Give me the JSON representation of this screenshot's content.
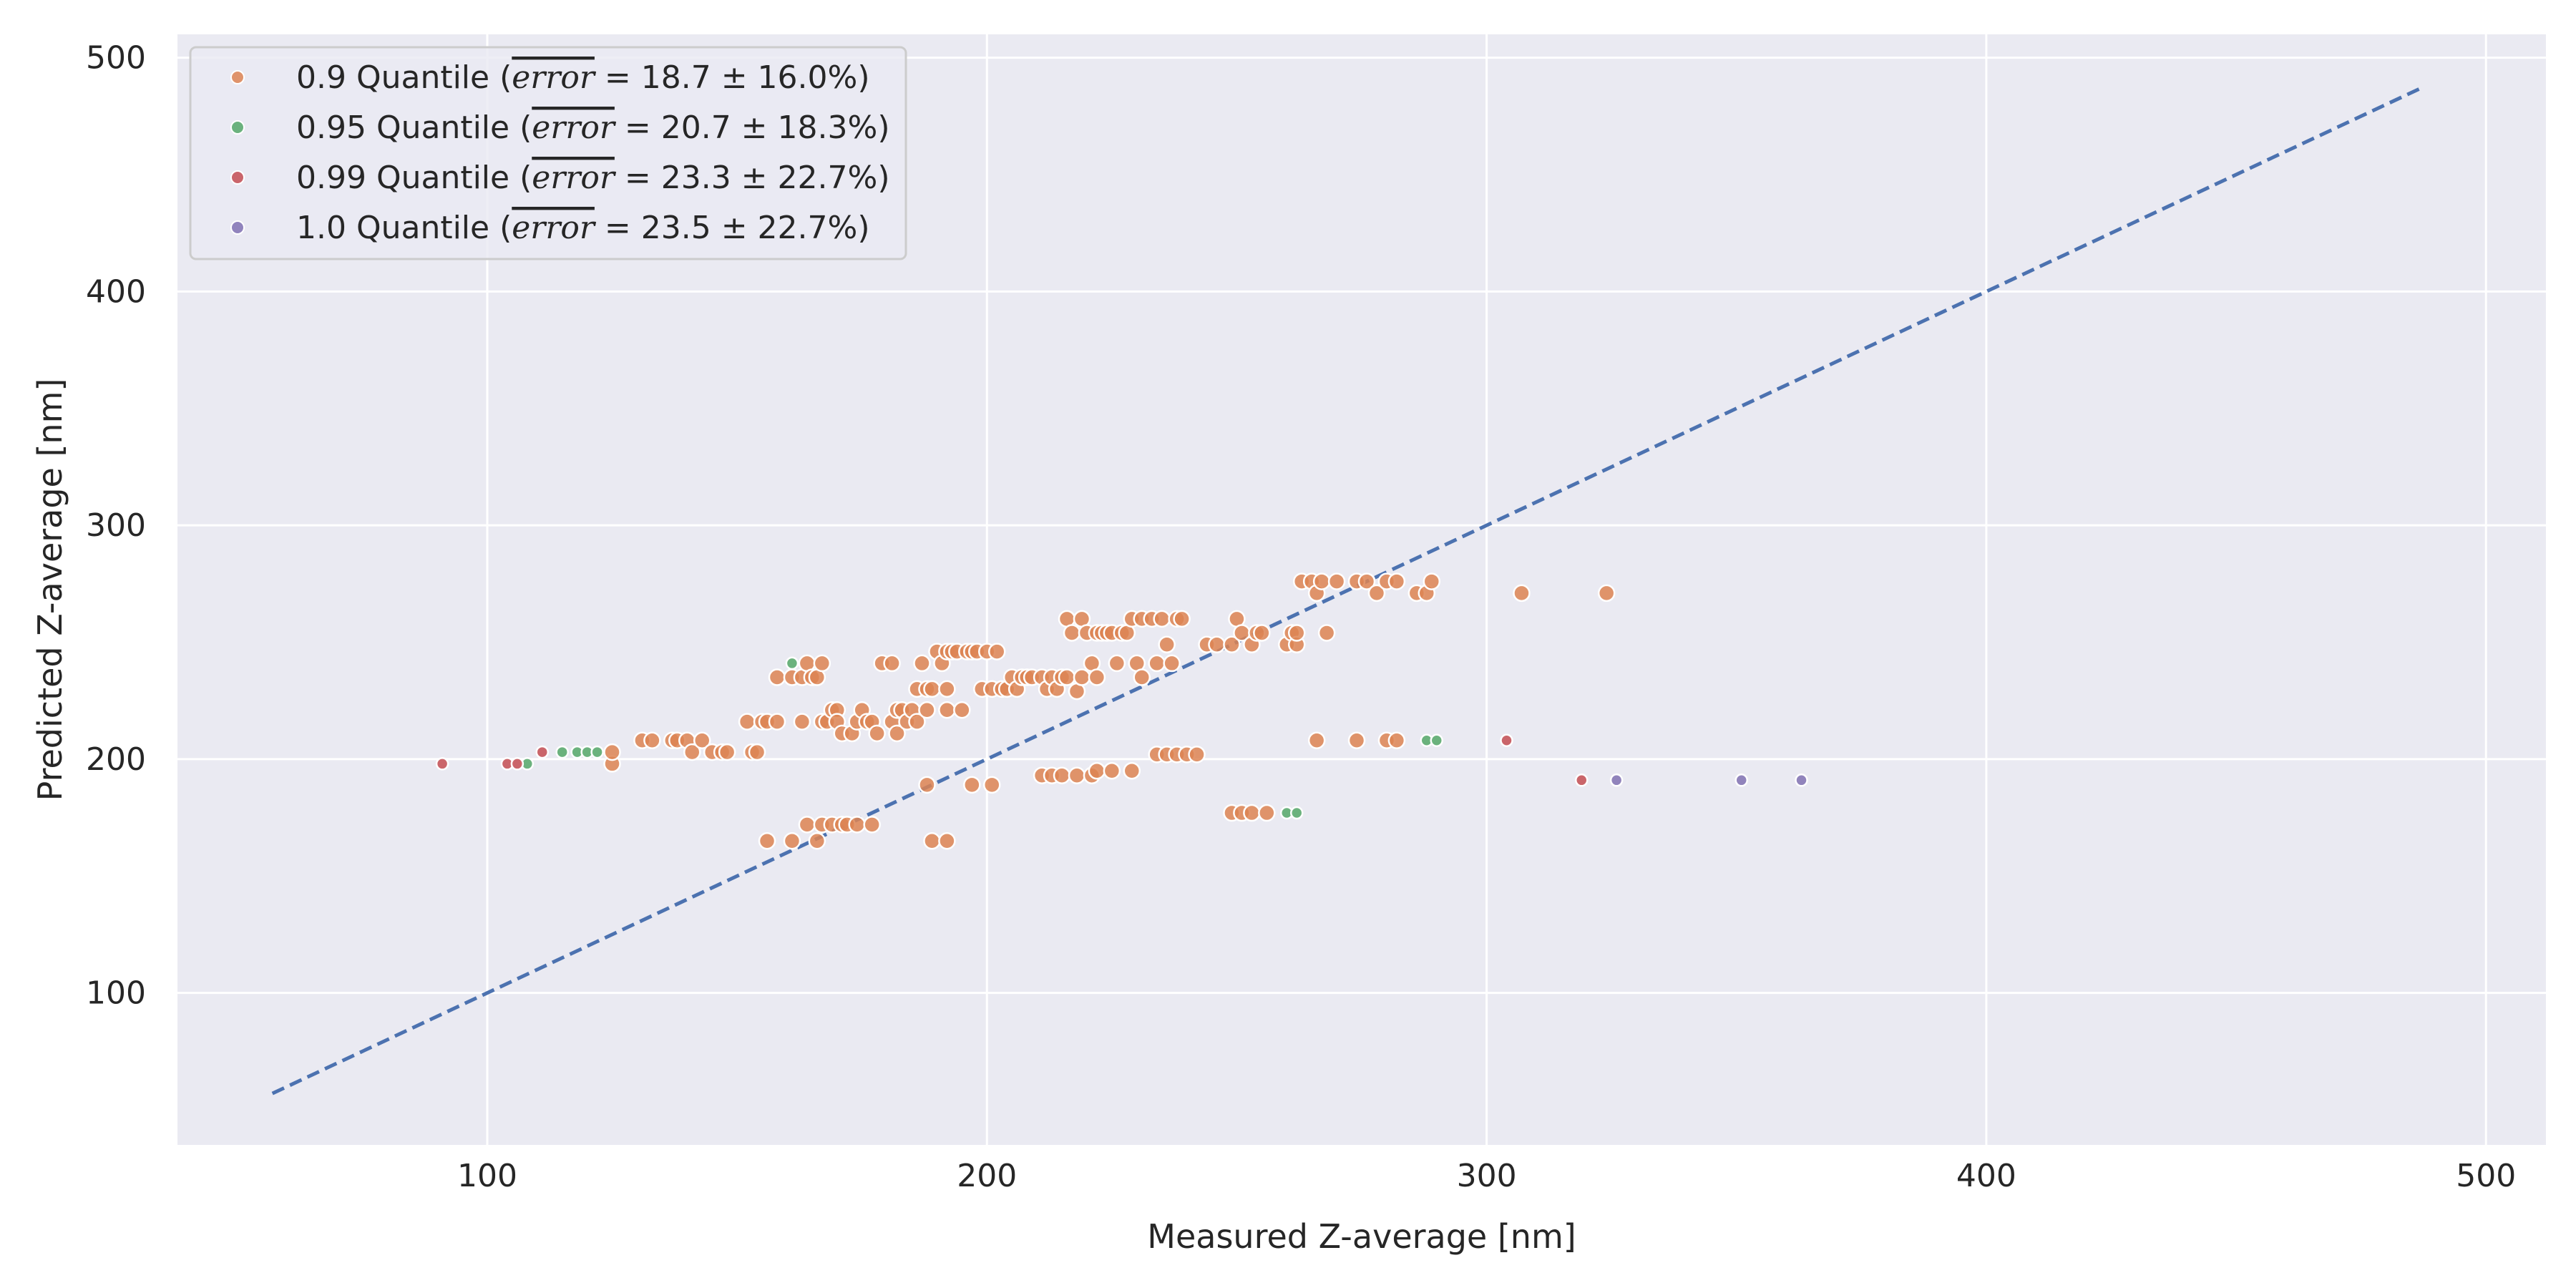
{
  "chart_data": {
    "type": "scatter",
    "xlabel": "Measured Z-average [nm]",
    "ylabel": "Predicted Z-average [nm]",
    "xlim": [
      38,
      512
    ],
    "ylim": [
      35,
      510
    ],
    "xticks": [
      100,
      200,
      300,
      400,
      500
    ],
    "yticks": [
      100,
      200,
      300,
      400,
      500
    ],
    "grid": true,
    "legend_position": "top-left",
    "background": "#eaeaf2",
    "reference_line": {
      "style": "dashed",
      "color": "#4c72b0",
      "from": [
        57,
        57
      ],
      "to": [
        487,
        487
      ]
    },
    "series": [
      {
        "name": "0.9 Quantile",
        "error_text": "= 18.7 ± 16.0%)",
        "color": "#dd8452",
        "points": [
          [
            125,
            198
          ],
          [
            125,
            203
          ],
          [
            131,
            208
          ],
          [
            133,
            208
          ],
          [
            137,
            208
          ],
          [
            138,
            208
          ],
          [
            140,
            208
          ],
          [
            141,
            203
          ],
          [
            143,
            208
          ],
          [
            145,
            203
          ],
          [
            147,
            203
          ],
          [
            148,
            203
          ],
          [
            153,
            203
          ],
          [
            154,
            203
          ],
          [
            152,
            216
          ],
          [
            155,
            216
          ],
          [
            156,
            216
          ],
          [
            158,
            216
          ],
          [
            158,
            235
          ],
          [
            161,
            235
          ],
          [
            163,
            235
          ],
          [
            164,
            241
          ],
          [
            163,
            216
          ],
          [
            165,
            235
          ],
          [
            166,
            235
          ],
          [
            167,
            241
          ],
          [
            167,
            216
          ],
          [
            168,
            216
          ],
          [
            169,
            221
          ],
          [
            170,
            221
          ],
          [
            170,
            216
          ],
          [
            171,
            211
          ],
          [
            173,
            211
          ],
          [
            174,
            216
          ],
          [
            175,
            221
          ],
          [
            176,
            216
          ],
          [
            177,
            216
          ],
          [
            178,
            211
          ],
          [
            179,
            241
          ],
          [
            181,
            241
          ],
          [
            181,
            216
          ],
          [
            182,
            211
          ],
          [
            182,
            221
          ],
          [
            183,
            221
          ],
          [
            184,
            216
          ],
          [
            185,
            221
          ],
          [
            186,
            216
          ],
          [
            186,
            230
          ],
          [
            187,
            241
          ],
          [
            188,
            221
          ],
          [
            188,
            230
          ],
          [
            189,
            230
          ],
          [
            190,
            246
          ],
          [
            191,
            241
          ],
          [
            192,
            221
          ],
          [
            192,
            230
          ],
          [
            192,
            246
          ],
          [
            193,
            246
          ],
          [
            194,
            246
          ],
          [
            195,
            221
          ],
          [
            196,
            246
          ],
          [
            197,
            246
          ],
          [
            198,
            246
          ],
          [
            199,
            230
          ],
          [
            200,
            246
          ],
          [
            201,
            230
          ],
          [
            202,
            246
          ],
          [
            203,
            230
          ],
          [
            204,
            230
          ],
          [
            205,
            235
          ],
          [
            206,
            230
          ],
          [
            207,
            235
          ],
          [
            208,
            235
          ],
          [
            209,
            235
          ],
          [
            211,
            235
          ],
          [
            212,
            230
          ],
          [
            213,
            235
          ],
          [
            214,
            230
          ],
          [
            215,
            235
          ],
          [
            216,
            235
          ],
          [
            216,
            260
          ],
          [
            217,
            254
          ],
          [
            218,
            229
          ],
          [
            219,
            235
          ],
          [
            219,
            260
          ],
          [
            220,
            254
          ],
          [
            221,
            241
          ],
          [
            222,
            235
          ],
          [
            222,
            254
          ],
          [
            223,
            254
          ],
          [
            224,
            254
          ],
          [
            225,
            254
          ],
          [
            226,
            241
          ],
          [
            227,
            254
          ],
          [
            228,
            254
          ],
          [
            229,
            260
          ],
          [
            230,
            241
          ],
          [
            231,
            235
          ],
          [
            231,
            260
          ],
          [
            233,
            260
          ],
          [
            234,
            241
          ],
          [
            235,
            260
          ],
          [
            236,
            249
          ],
          [
            237,
            241
          ],
          [
            238,
            260
          ],
          [
            239,
            260
          ],
          [
            244,
            249
          ],
          [
            246,
            249
          ],
          [
            249,
            249
          ],
          [
            250,
            260
          ],
          [
            251,
            254
          ],
          [
            253,
            249
          ],
          [
            254,
            254
          ],
          [
            255,
            254
          ],
          [
            260,
            249
          ],
          [
            261,
            254
          ],
          [
            262,
            249
          ],
          [
            262,
            254
          ],
          [
            263,
            276
          ],
          [
            265,
            276
          ],
          [
            266,
            271
          ],
          [
            267,
            276
          ],
          [
            268,
            254
          ],
          [
            270,
            276
          ],
          [
            274,
            276
          ],
          [
            276,
            276
          ],
          [
            278,
            271
          ],
          [
            280,
            276
          ],
          [
            282,
            276
          ],
          [
            286,
            271
          ],
          [
            288,
            271
          ],
          [
            289,
            276
          ],
          [
            307,
            271
          ],
          [
            324,
            271
          ],
          [
            156,
            165
          ],
          [
            161,
            165
          ],
          [
            164,
            172
          ],
          [
            166,
            165
          ],
          [
            167,
            172
          ],
          [
            169,
            172
          ],
          [
            171,
            172
          ],
          [
            172,
            172
          ],
          [
            174,
            172
          ],
          [
            177,
            172
          ],
          [
            188,
            189
          ],
          [
            189,
            165
          ],
          [
            192,
            165
          ],
          [
            197,
            189
          ],
          [
            201,
            189
          ],
          [
            211,
            193
          ],
          [
            213,
            193
          ],
          [
            215,
            193
          ],
          [
            218,
            193
          ],
          [
            221,
            193
          ],
          [
            222,
            195
          ],
          [
            225,
            195
          ],
          [
            229,
            195
          ],
          [
            234,
            202
          ],
          [
            236,
            202
          ],
          [
            238,
            202
          ],
          [
            240,
            202
          ],
          [
            242,
            202
          ],
          [
            249,
            177
          ],
          [
            251,
            177
          ],
          [
            253,
            177
          ],
          [
            256,
            177
          ],
          [
            266,
            208
          ],
          [
            274,
            208
          ],
          [
            280,
            208
          ],
          [
            282,
            208
          ]
        ]
      },
      {
        "name": "0.95 Quantile",
        "error_text": "= 20.7 ± 18.3%)",
        "color": "#55a868",
        "points": [
          [
            108,
            198
          ],
          [
            115,
            203
          ],
          [
            118,
            203
          ],
          [
            120,
            203
          ],
          [
            122,
            203
          ],
          [
            161,
            241
          ],
          [
            260,
            177
          ],
          [
            262,
            177
          ],
          [
            288,
            208
          ],
          [
            290,
            208
          ]
        ]
      },
      {
        "name": "0.99 Quantile",
        "error_text": "= 23.3 ± 22.7%)",
        "color": "#c44e52",
        "points": [
          [
            91,
            198
          ],
          [
            104,
            198
          ],
          [
            106,
            198
          ],
          [
            111,
            203
          ],
          [
            304,
            208
          ],
          [
            319,
            191
          ]
        ]
      },
      {
        "name": "1.0 Quantile",
        "error_text": "= 23.5 ± 22.7%)",
        "color": "#8172b3",
        "points": [
          [
            326,
            191
          ],
          [
            351,
            191
          ],
          [
            363,
            191
          ]
        ]
      }
    ]
  }
}
